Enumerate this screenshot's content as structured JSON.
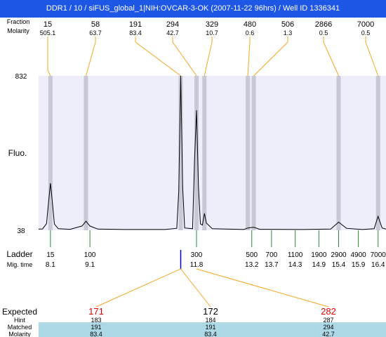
{
  "window": {
    "title": "DDR1 / 10 / siFUS_global_1|NIH:OVCAR-3-OK (2007-11-22 96hrs) / Well ID 1336341"
  },
  "colors": {
    "plot_bg": "#eeeefb",
    "peak_band": "#c8c8d6",
    "connector": "#f5a623",
    "ladder_tick": "#2e8b2e",
    "title_bg": "#1e57e6",
    "marker": "#0000cc",
    "expected_red": "#dd0000",
    "table_band": "#add8e6"
  },
  "chart_data": {
    "type": "line",
    "top_rows": {
      "label_top": "Fraction",
      "label_molarity": "Molarity"
    },
    "peaks": [
      {
        "size": "15",
        "molarity": "505.1",
        "time": 8.1
      },
      {
        "size": "58",
        "molarity": "63.7",
        "time": 9.0
      },
      {
        "size": "191",
        "molarity": "83.4",
        "time": 11.4
      },
      {
        "size": "294",
        "molarity": "42.7",
        "time": 11.8
      },
      {
        "size": "329",
        "molarity": "10.7",
        "time": 12.0
      },
      {
        "size": "480",
        "molarity": "0.6",
        "time": 13.1
      },
      {
        "size": "506",
        "molarity": "1.3",
        "time": 13.25
      },
      {
        "size": "2866",
        "molarity": "0.5",
        "time": 15.4
      },
      {
        "size": "7000",
        "molarity": "0.5",
        "time": 16.4
      }
    ],
    "ylabel": "Fluo.",
    "y_ticks": [
      "832",
      "38"
    ],
    "ylim": [
      38,
      832
    ],
    "xlim": [
      7.8,
      16.6
    ],
    "trace": [
      [
        7.8,
        44
      ],
      [
        7.9,
        45
      ],
      [
        8.0,
        72
      ],
      [
        8.05,
        180
      ],
      [
        8.1,
        280
      ],
      [
        8.15,
        180
      ],
      [
        8.2,
        70
      ],
      [
        8.3,
        46
      ],
      [
        8.6,
        43
      ],
      [
        8.9,
        60
      ],
      [
        9.0,
        85
      ],
      [
        9.1,
        60
      ],
      [
        9.3,
        44
      ],
      [
        10.0,
        42
      ],
      [
        11.0,
        42
      ],
      [
        11.3,
        48
      ],
      [
        11.35,
        240
      ],
      [
        11.4,
        832
      ],
      [
        11.45,
        260
      ],
      [
        11.5,
        50
      ],
      [
        11.7,
        46
      ],
      [
        11.75,
        400
      ],
      [
        11.8,
        655
      ],
      [
        11.85,
        260
      ],
      [
        11.9,
        70
      ],
      [
        11.95,
        65
      ],
      [
        12.0,
        125
      ],
      [
        12.05,
        75
      ],
      [
        12.2,
        46
      ],
      [
        13.0,
        42
      ],
      [
        13.1,
        50
      ],
      [
        13.25,
        54
      ],
      [
        13.4,
        43
      ],
      [
        14.5,
        42
      ],
      [
        15.2,
        44
      ],
      [
        15.4,
        80
      ],
      [
        15.6,
        48
      ],
      [
        16.0,
        42
      ],
      [
        16.3,
        46
      ],
      [
        16.4,
        110
      ],
      [
        16.5,
        50
      ],
      [
        16.6,
        44
      ]
    ],
    "ladder": {
      "label": "Ladder",
      "time_label": "Mig. time",
      "sizes": [
        "15",
        "100",
        "300",
        "500",
        "700",
        "1100",
        "1900",
        "2900",
        "4900",
        "7000"
      ],
      "times": [
        8.1,
        9.1,
        11.8,
        13.2,
        13.7,
        14.3,
        14.9,
        15.4,
        15.9,
        16.4
      ]
    },
    "marker_time": 11.4,
    "expected": {
      "label": "Expected",
      "row_labels": {
        "hint": "Hint",
        "matched": "Matched",
        "molarity": "Molarity"
      },
      "columns": [
        {
          "expected": "171",
          "hint": "183",
          "matched": "191",
          "molarity": "83.4",
          "link_to_time": 11.4
        },
        {
          "expected": "172",
          "hint": "184",
          "matched": "191",
          "molarity": "83.4",
          "link_to_time": 11.4
        },
        {
          "expected": "282",
          "hint": "287",
          "matched": "294",
          "molarity": "42.7",
          "link_to_time": 11.8
        }
      ],
      "red_columns": [
        0,
        2
      ]
    }
  }
}
